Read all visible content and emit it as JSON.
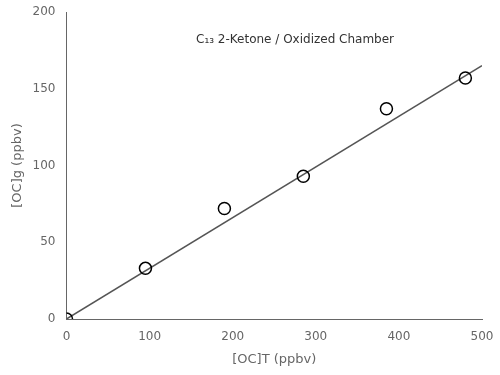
{
  "chart_data": {
    "type": "scatter",
    "x_label": "[OC]T (ppbv)",
    "y_label": "[OC]g (ppbv)",
    "annotations": [
      "C₁₃ 2-Ketone / Oxidized Chamber"
    ],
    "xlim": [
      0,
      500
    ],
    "xticks": [
      0,
      100,
      200,
      300,
      400,
      500
    ],
    "ylim": [
      0,
      200
    ],
    "yticks": [
      0,
      50,
      100,
      150,
      200
    ],
    "grid": false,
    "series": [
      {
        "type": "line",
        "color": "#555555",
        "line_style": "solid",
        "x": [
          0,
          500
        ],
        "values": [
          0,
          165
        ]
      },
      {
        "type": "scatter",
        "marker": "circle",
        "color": "#000000",
        "x": [
          0,
          95,
          190,
          285,
          385,
          480
        ],
        "values": [
          0,
          33,
          72,
          93,
          137,
          157
        ]
      }
    ]
  }
}
